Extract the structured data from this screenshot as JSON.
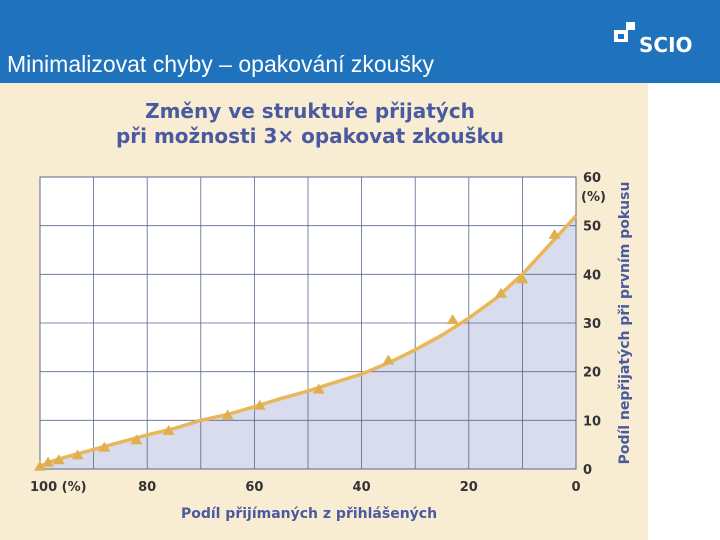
{
  "slide": {
    "title": "Minimalizovat chyby – opakování zkoušky",
    "logo_text": "SCIO"
  },
  "colors": {
    "header": "#1f72bc",
    "panel": "#f8ecd2",
    "plot_bg": "#ffffff",
    "area_fill": "#d8dcec",
    "line": "#e9b65a",
    "marker": "#e0b050",
    "grid": "#5a6890",
    "title": "#4a5aa0"
  },
  "chart_data": {
    "type": "area",
    "title_lines": [
      "Změny ve struktuře přijatých",
      "při možnosti 3× opakovat zkoušku"
    ],
    "xlabel": "Podíl přijímaných z přihlášených",
    "ylabel": "Podíl nepřijatých při prvním pokusu",
    "xlim": [
      100,
      0
    ],
    "ylim": [
      0,
      60
    ],
    "x_ticks": [
      {
        "value": 100,
        "label": "100 (%)"
      },
      {
        "value": 80,
        "label": "80"
      },
      {
        "value": 60,
        "label": "60"
      },
      {
        "value": 40,
        "label": "40"
      },
      {
        "value": 20,
        "label": "20"
      },
      {
        "value": 0,
        "label": "0"
      }
    ],
    "y_ticks": [
      {
        "value": 0,
        "label": "0"
      },
      {
        "value": 10,
        "label": "10"
      },
      {
        "value": 20,
        "label": "20"
      },
      {
        "value": 30,
        "label": "30"
      },
      {
        "value": 40,
        "label": "40"
      },
      {
        "value": 50,
        "label": "50"
      },
      {
        "value": 60,
        "label": "60"
      }
    ],
    "y_unit": "(%)",
    "grid_x": [
      100,
      90,
      80,
      70,
      60,
      50,
      40,
      30,
      20,
      10,
      0
    ],
    "grid_y": [
      0,
      10,
      20,
      30,
      40,
      50,
      60
    ],
    "series": [
      {
        "curve": [
          [
            100,
            0.5
          ],
          [
            98,
            1.5
          ],
          [
            95,
            2.5
          ],
          [
            90,
            4
          ],
          [
            85,
            5.5
          ],
          [
            80,
            7
          ],
          [
            75,
            8.3
          ],
          [
            70,
            10
          ],
          [
            65,
            11.2
          ],
          [
            60,
            12.8
          ],
          [
            55,
            14.5
          ],
          [
            50,
            16
          ],
          [
            45,
            17.8
          ],
          [
            40,
            19.5
          ],
          [
            35,
            21.8
          ],
          [
            30,
            24.5
          ],
          [
            25,
            27.5
          ],
          [
            20,
            31
          ],
          [
            15,
            35
          ],
          [
            10,
            40
          ],
          [
            5,
            46
          ],
          [
            0,
            52
          ]
        ],
        "markers": [
          [
            100,
            0.5
          ],
          [
            98.5,
            1.3
          ],
          [
            96.5,
            1.8
          ],
          [
            93,
            2.8
          ],
          [
            88,
            4.4
          ],
          [
            82,
            5.9
          ],
          [
            76,
            7.8
          ],
          [
            65,
            11
          ],
          [
            59,
            13
          ],
          [
            48,
            16.3
          ],
          [
            35,
            22.3
          ],
          [
            23,
            30.6
          ],
          [
            14,
            36
          ],
          [
            10,
            39
          ],
          [
            4,
            48.1
          ]
        ]
      }
    ]
  }
}
